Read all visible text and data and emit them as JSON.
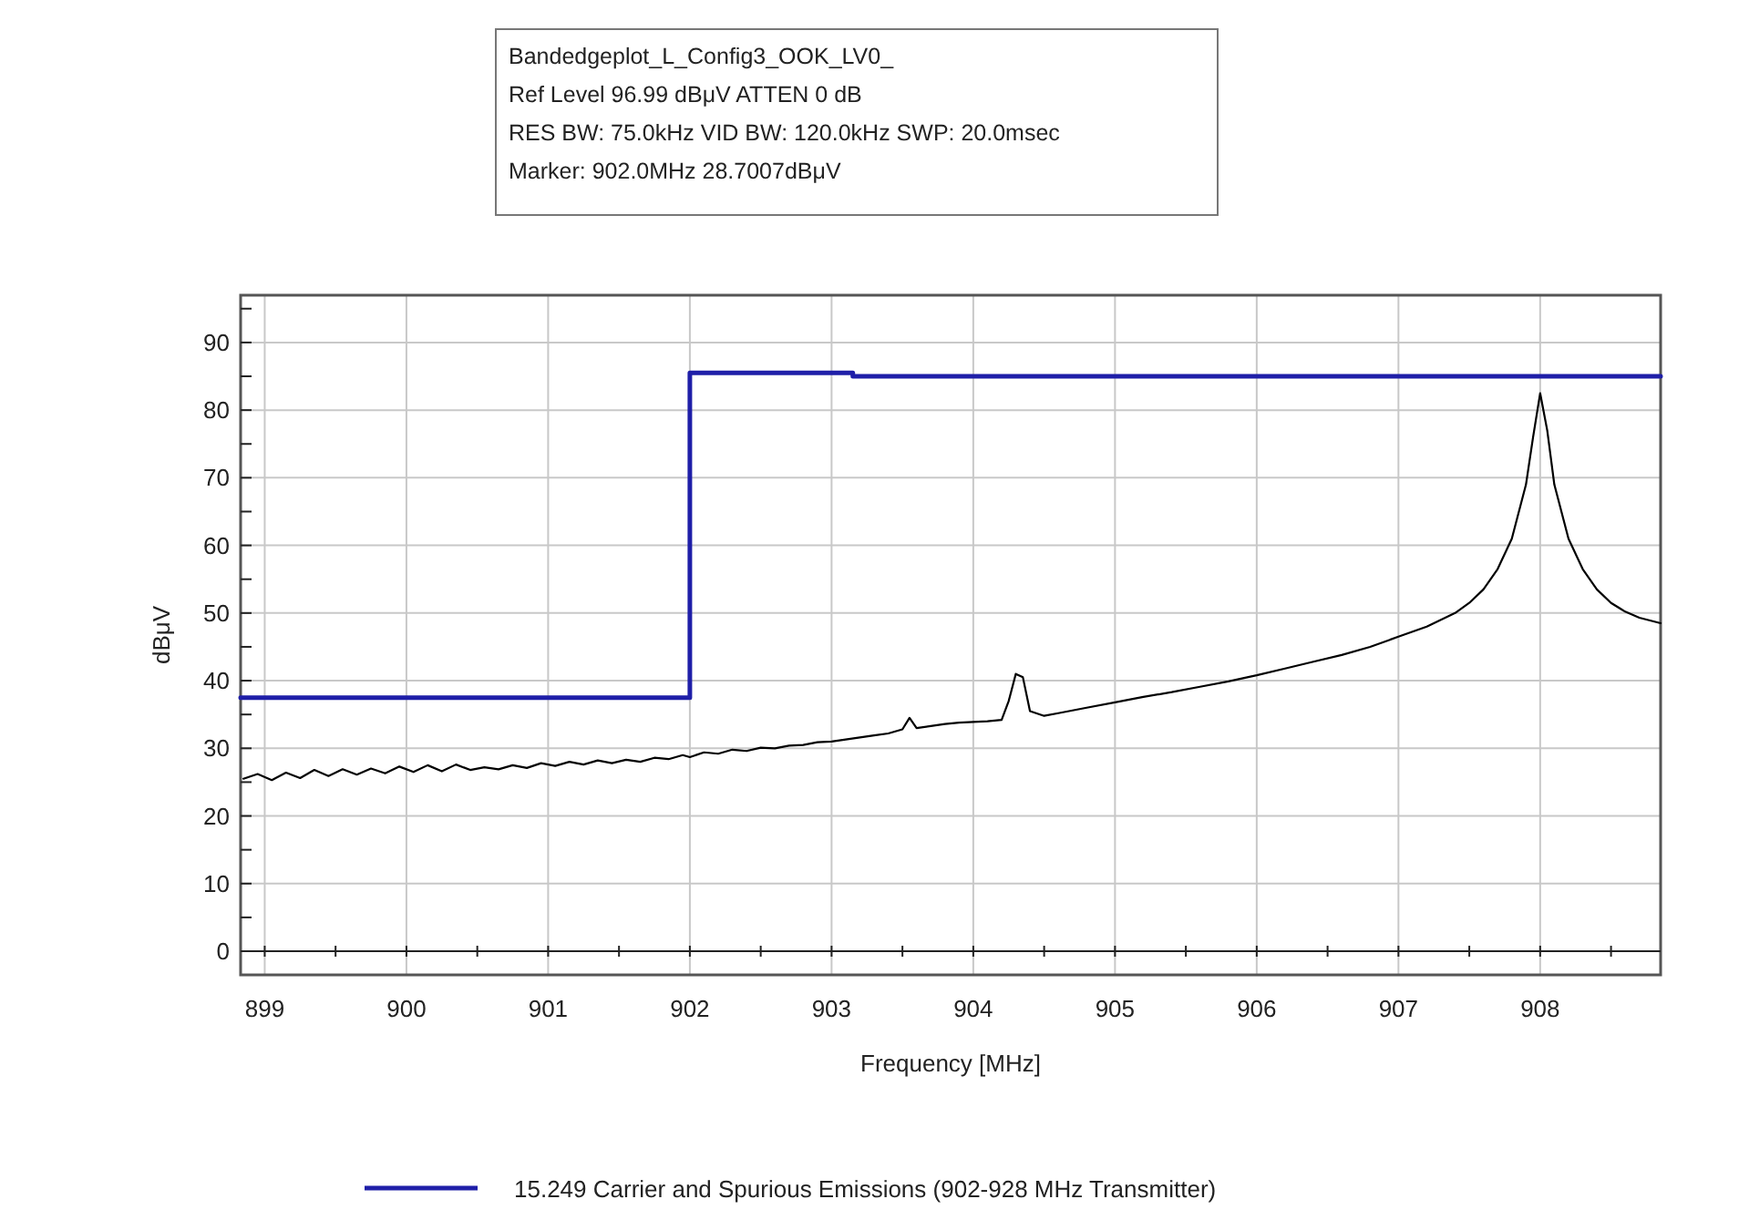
{
  "chart_data": {
    "type": "line",
    "title": "Bandedgeplot_L_Config3_OOK_LV0_",
    "annotations": [
      "Ref Level 96.99 dBμV    ATTEN 0 dB",
      "RES BW: 75.0kHz  VID BW: 120.0kHz  SWP: 20.0msec",
      "Marker: 902.0MHz  28.7007dBμV"
    ],
    "xlabel": "Frequency [MHz]",
    "ylabel": "dBμV",
    "xlim": [
      898.83,
      908.85
    ],
    "ylim": [
      -3.5,
      96.99
    ],
    "xticks": [
      899,
      {
        "value": 899.5,
        "label": null
      },
      900,
      {
        "value": 900.5,
        "label": null
      },
      901,
      {
        "value": 901.5,
        "label": null
      },
      902,
      {
        "value": 902.5,
        "label": null
      },
      903,
      {
        "value": 903.5,
        "label": null
      },
      904,
      {
        "value": 904.5,
        "label": null
      },
      905,
      {
        "value": 905.5,
        "label": null
      },
      906,
      {
        "value": 906.5,
        "label": null
      },
      907,
      {
        "value": 907.5,
        "label": null
      },
      908,
      {
        "value": 908.5,
        "label": null
      }
    ],
    "yticks": [
      0,
      {
        "value": 5,
        "label": null
      },
      10,
      {
        "value": 15,
        "label": null
      },
      20,
      {
        "value": 25,
        "label": null
      },
      30,
      {
        "value": 35,
        "label": null
      },
      40,
      {
        "value": 45,
        "label": null
      },
      50,
      {
        "value": 55,
        "label": null
      },
      60,
      {
        "value": 65,
        "label": null
      },
      70,
      {
        "value": 75,
        "label": null
      },
      80,
      {
        "value": 85,
        "label": null
      },
      90,
      {
        "value": 95,
        "label": null
      }
    ],
    "grid": true,
    "legend": "bottom",
    "series": [
      {
        "color": "#000000",
        "x": [
          898.85,
          898.95,
          899.05,
          899.15,
          899.25,
          899.35,
          899.45,
          899.55,
          899.65,
          899.75,
          899.85,
          899.95,
          900.05,
          900.15,
          900.25,
          900.35,
          900.45,
          900.55,
          900.65,
          900.75,
          900.85,
          900.95,
          901.05,
          901.15,
          901.25,
          901.35,
          901.45,
          901.55,
          901.65,
          901.75,
          901.85,
          901.95,
          902.0,
          902.1,
          902.2,
          902.3,
          902.4,
          902.5,
          902.6,
          902.7,
          902.8,
          902.9,
          903.0,
          903.1,
          903.2,
          903.3,
          903.4,
          903.5,
          903.55,
          903.6,
          903.7,
          903.8,
          903.9,
          904.0,
          904.1,
          904.2,
          904.25,
          904.3,
          904.35,
          904.4,
          904.5,
          904.6,
          904.7,
          904.8,
          905.0,
          905.2,
          905.4,
          905.6,
          905.8,
          906.0,
          906.2,
          906.4,
          906.6,
          906.8,
          907.0,
          907.2,
          907.4,
          907.5,
          907.6,
          907.7,
          907.8,
          907.9,
          907.95,
          908.0,
          908.05,
          908.1,
          908.2,
          908.3,
          908.4,
          908.5,
          908.6,
          908.7,
          908.85
        ],
        "values": [
          25.5,
          26.2,
          25.3,
          26.4,
          25.6,
          26.8,
          25.9,
          26.9,
          26.1,
          27.0,
          26.3,
          27.3,
          26.5,
          27.5,
          26.6,
          27.6,
          26.8,
          27.2,
          26.9,
          27.5,
          27.1,
          27.8,
          27.4,
          28.0,
          27.6,
          28.2,
          27.8,
          28.3,
          28.0,
          28.6,
          28.4,
          29.0,
          28.7,
          29.4,
          29.2,
          29.8,
          29.6,
          30.1,
          30.0,
          30.4,
          30.5,
          30.9,
          31.0,
          31.3,
          31.6,
          31.9,
          32.2,
          32.8,
          34.5,
          33.0,
          33.3,
          33.6,
          33.8,
          33.9,
          34.0,
          34.2,
          37,
          41.0,
          40.5,
          35.5,
          34.8,
          35.2,
          35.6,
          36.0,
          36.8,
          37.6,
          38.3,
          39.1,
          39.9,
          40.8,
          41.8,
          42.8,
          43.8,
          45.0,
          46.5,
          48.0,
          50.0,
          51.5,
          53.5,
          56.5,
          61,
          69,
          76,
          82.5,
          77,
          69,
          61,
          56.5,
          53.5,
          51.5,
          50.2,
          49.3,
          48.5
        ]
      },
      {
        "type": "step",
        "name": "15.249 Carrier and Spurious Emissions (902-928 MHz Transmitter)",
        "color": "#1f1fa8",
        "x": [
          898.83,
          902.0,
          903.15,
          908.85
        ],
        "values": [
          37.5,
          85.5,
          85,
          85
        ]
      }
    ]
  }
}
